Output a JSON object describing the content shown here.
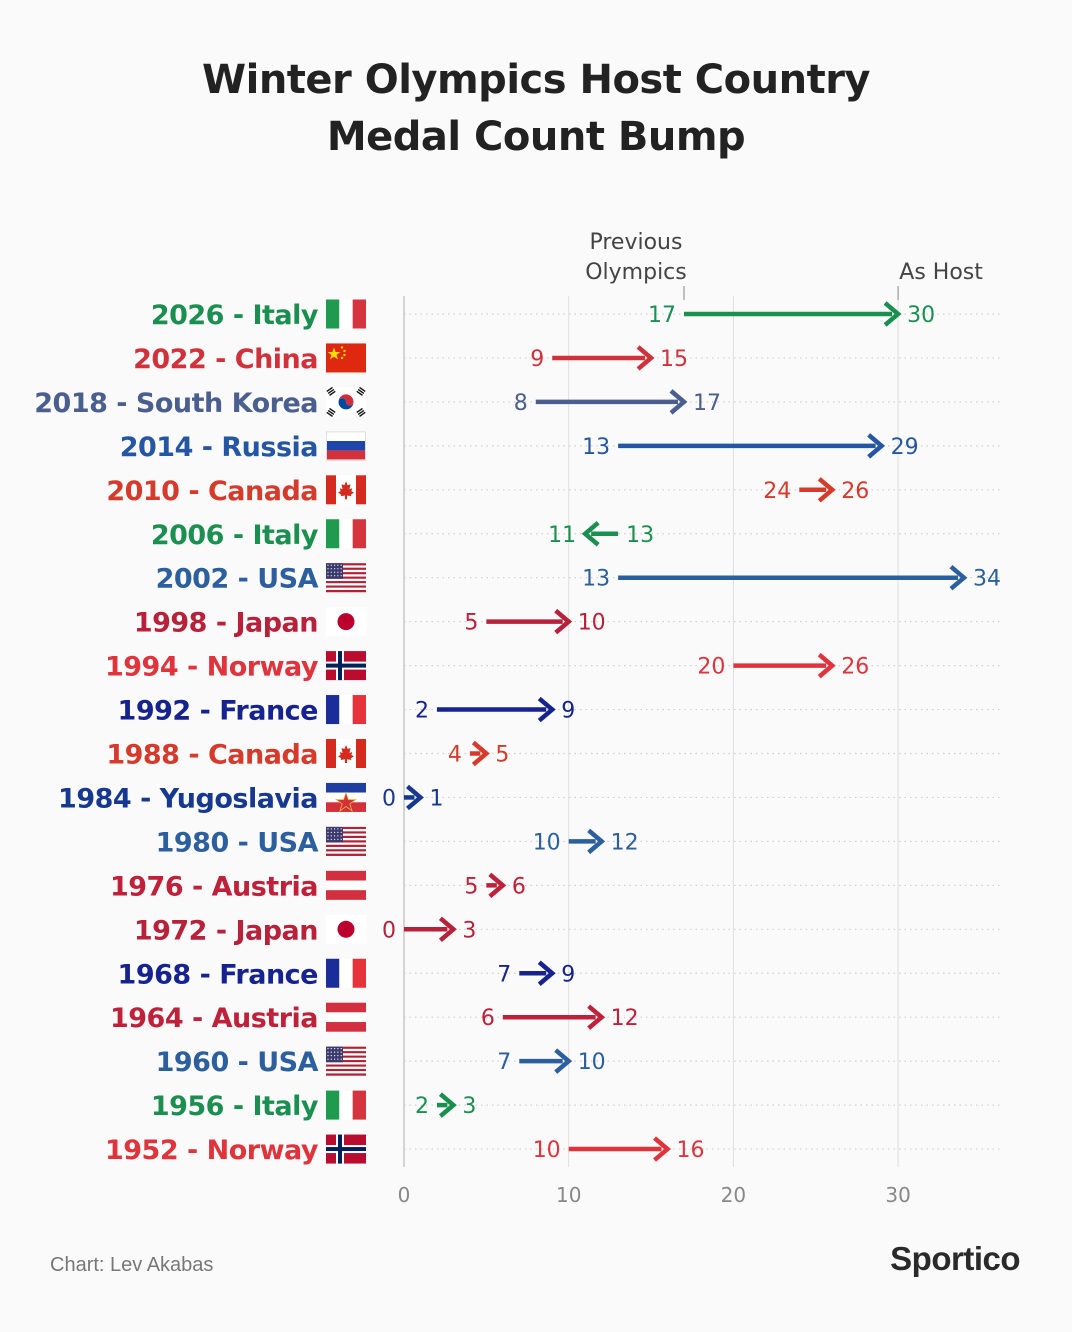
{
  "chart_data": {
    "type": "arrow-dot",
    "title_lines": [
      "Winter Olympics Host Country",
      "Medal Count Bump"
    ],
    "annotations": {
      "previous": [
        "Previous",
        "Olympics"
      ],
      "host": "As Host"
    },
    "x_ticks": [
      0,
      10,
      20,
      30
    ],
    "xlim": [
      0,
      36
    ],
    "rows": [
      {
        "label": "2026 - Italy",
        "flag": "italy",
        "color": "#1a8f4f",
        "previous": 17,
        "host": 30
      },
      {
        "label": "2022 - China",
        "flag": "china",
        "color": "#d0323b",
        "previous": 9,
        "host": 15
      },
      {
        "label": "2018 - South Korea",
        "flag": "south-korea",
        "color": "#4a5f8f",
        "previous": 8,
        "host": 17
      },
      {
        "label": "2014 - Russia",
        "flag": "russia",
        "color": "#2556a3",
        "previous": 13,
        "host": 29
      },
      {
        "label": "2010 - Canada",
        "flag": "canada",
        "color": "#d63a2a",
        "previous": 24,
        "host": 26
      },
      {
        "label": "2006 - Italy",
        "flag": "italy",
        "color": "#1a8f4f",
        "previous": 13,
        "host": 11
      },
      {
        "label": "2002 - USA",
        "flag": "usa",
        "color": "#2c5f9e",
        "previous": 13,
        "host": 34
      },
      {
        "label": "1998 - Japan",
        "flag": "japan",
        "color": "#b8213a",
        "previous": 5,
        "host": 10
      },
      {
        "label": "1994 - Norway",
        "flag": "norway",
        "color": "#e0343d",
        "previous": 20,
        "host": 26
      },
      {
        "label": "1992 - France",
        "flag": "france",
        "color": "#16238f",
        "previous": 2,
        "host": 9
      },
      {
        "label": "1988 - Canada",
        "flag": "canada",
        "color": "#d63a2a",
        "previous": 4,
        "host": 5
      },
      {
        "label": "1984 - Yugoslavia",
        "flag": "yugoslavia",
        "color": "#16388f",
        "previous": 0,
        "host": 1
      },
      {
        "label": "1980 - USA",
        "flag": "usa",
        "color": "#2c5f9e",
        "previous": 10,
        "host": 12
      },
      {
        "label": "1976 - Austria",
        "flag": "austria",
        "color": "#c0213a",
        "previous": 5,
        "host": 6
      },
      {
        "label": "1972 - Japan",
        "flag": "japan",
        "color": "#b8213a",
        "previous": 0,
        "host": 3
      },
      {
        "label": "1968 - France",
        "flag": "france",
        "color": "#16238f",
        "previous": 7,
        "host": 9
      },
      {
        "label": "1964 - Austria",
        "flag": "austria",
        "color": "#c0213a",
        "previous": 6,
        "host": 12
      },
      {
        "label": "1960 - USA",
        "flag": "usa",
        "color": "#2c5f9e",
        "previous": 7,
        "host": 10
      },
      {
        "label": "1956 - Italy",
        "flag": "italy",
        "color": "#1a8f4f",
        "previous": 2,
        "host": 3
      },
      {
        "label": "1952 - Norway",
        "flag": "norway",
        "color": "#e0343d",
        "previous": 10,
        "host": 16
      }
    ]
  },
  "footer": {
    "credit": "Chart: Lev Akabas",
    "brand": "Sportico"
  }
}
